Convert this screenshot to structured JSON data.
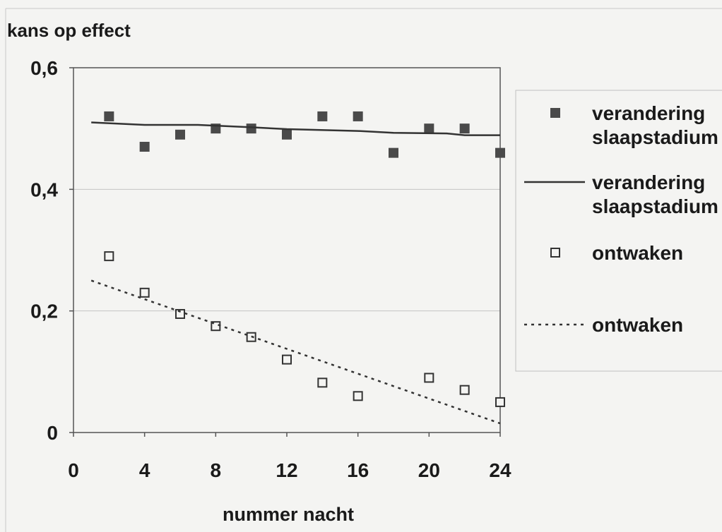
{
  "chart_data": {
    "type": "scatter",
    "ylabel": "kans op effect",
    "xlabel": "nummer nacht",
    "xlim": [
      0,
      24
    ],
    "ylim": [
      0,
      0.6
    ],
    "xticks": [
      0,
      4,
      8,
      12,
      16,
      20,
      24
    ],
    "xtick_labels": [
      "0",
      "4",
      "8",
      "12",
      "16",
      "20",
      "24"
    ],
    "yticks": [
      0,
      0.2,
      0.4,
      0.6
    ],
    "ytick_labels": [
      "0",
      "0,2",
      "0,4",
      "0,6"
    ],
    "grid": "horizontal",
    "legend_position": "right",
    "series": [
      {
        "name": "verandering slaapstadium",
        "kind": "points",
        "marker": "filled-square",
        "color": "#4a4a4a",
        "x": [
          2,
          4,
          6,
          8,
          10,
          12,
          14,
          16,
          18,
          20,
          22,
          24
        ],
        "y": [
          0.52,
          0.47,
          0.49,
          0.5,
          0.5,
          0.49,
          0.52,
          0.52,
          0.46,
          0.5,
          0.5,
          0.46
        ]
      },
      {
        "name": "verandering slaapstadium",
        "kind": "line",
        "style": "solid",
        "color": "#333333",
        "x": [
          1,
          4,
          7,
          10,
          12,
          16,
          18,
          21,
          22,
          24
        ],
        "y": [
          0.51,
          0.506,
          0.506,
          0.502,
          0.499,
          0.496,
          0.493,
          0.492,
          0.489,
          0.489
        ]
      },
      {
        "name": "ontwaken",
        "kind": "points",
        "marker": "open-square",
        "color": "#333333",
        "x": [
          2,
          4,
          6,
          8,
          10,
          12,
          14,
          16,
          20,
          22,
          24
        ],
        "y": [
          0.29,
          0.23,
          0.195,
          0.175,
          0.157,
          0.12,
          0.082,
          0.06,
          0.09,
          0.07,
          0.05
        ]
      },
      {
        "name": "ontwaken",
        "kind": "line",
        "style": "dotted",
        "color": "#333333",
        "x": [
          1,
          24
        ],
        "y": [
          0.25,
          0.015
        ]
      }
    ]
  }
}
